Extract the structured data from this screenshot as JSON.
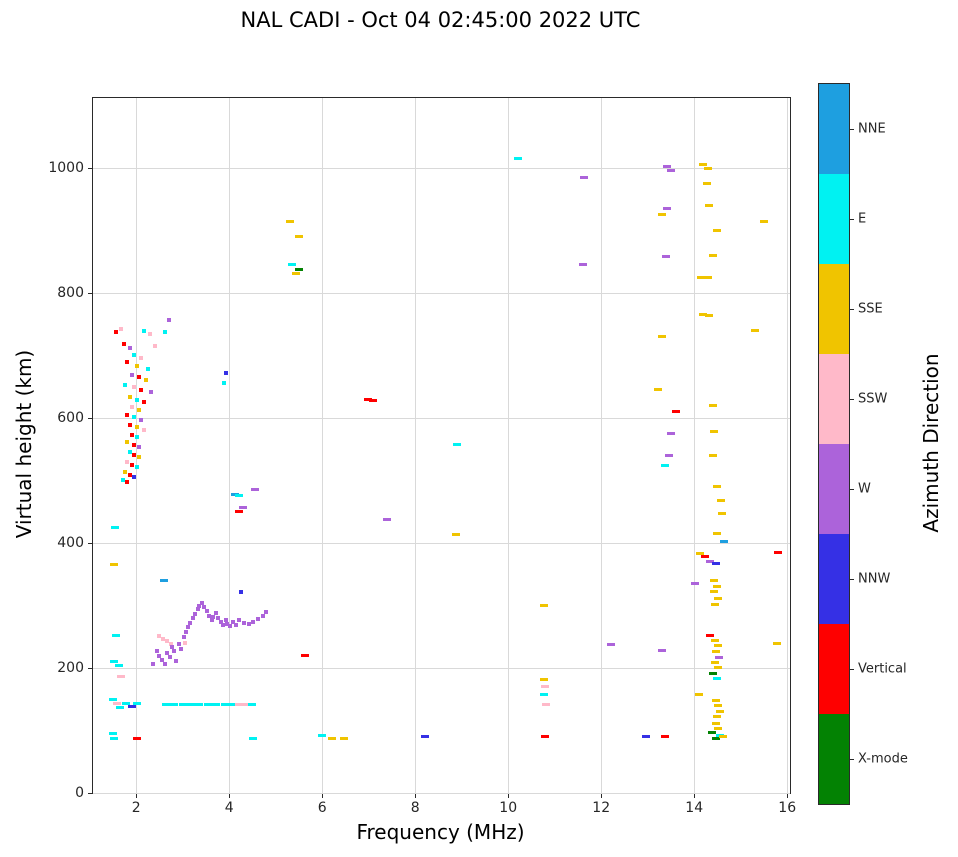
{
  "title": "NAL CADI - Oct 04 02:45:00 2022 UTC",
  "chart_data": {
    "type": "scatter",
    "title": "NAL CADI - Oct 04 02:45:00 2022 UTC",
    "xlabel": "Frequency (MHz)",
    "ylabel": "Virtual height (km)",
    "colorbar_label": "Azimuth Direction",
    "xlim": [
      1.07,
      16.06
    ],
    "ylim": [
      0,
      1112
    ],
    "xticks": [
      2,
      4,
      6,
      8,
      10,
      12,
      14,
      16
    ],
    "yticks": [
      0,
      200,
      400,
      600,
      800,
      1000
    ],
    "grid": true,
    "legend_position": "right-colorbar",
    "categories": [
      {
        "name": "NNE",
        "color": "#1E9FE0"
      },
      {
        "name": "E",
        "color": "#00F2F2"
      },
      {
        "name": "SSE",
        "color": "#F0C400"
      },
      {
        "name": "SSW",
        "color": "#FFB9C9"
      },
      {
        "name": "W",
        "color": "#AC63DA"
      },
      {
        "name": "NNW",
        "color": "#3530E5"
      },
      {
        "name": "Vertical",
        "color": "#FE0000"
      },
      {
        "name": "X-mode",
        "color": "#038203"
      }
    ],
    "points": [
      [
        1.57,
        738,
        "Vertical",
        1
      ],
      [
        1.68,
        743,
        "SSW",
        1
      ],
      [
        2.17,
        740,
        "E",
        1
      ],
      [
        2.3,
        735,
        "SSW",
        1
      ],
      [
        1.73,
        719,
        "Vertical",
        1
      ],
      [
        1.86,
        712,
        "W",
        1
      ],
      [
        2.4,
        716,
        "SSW",
        1
      ],
      [
        1.95,
        701,
        "E",
        1
      ],
      [
        2.1,
        696,
        "SSW",
        1
      ],
      [
        1.8,
        689,
        "Vertical",
        1
      ],
      [
        2.01,
        683,
        "SSE",
        1
      ],
      [
        2.26,
        679,
        "E",
        1
      ],
      [
        1.9,
        669,
        "W",
        1
      ],
      [
        2.06,
        665,
        "Vertical",
        1
      ],
      [
        2.21,
        661,
        "SSE",
        1
      ],
      [
        1.76,
        653,
        "E",
        1
      ],
      [
        1.96,
        649,
        "SSW",
        1
      ],
      [
        2.11,
        645,
        "Vertical",
        1
      ],
      [
        2.31,
        641,
        "W",
        1
      ],
      [
        1.86,
        633,
        "SSE",
        1
      ],
      [
        2.01,
        629,
        "E",
        1
      ],
      [
        2.16,
        625,
        "Vertical",
        1
      ],
      [
        1.91,
        617,
        "SSW",
        1
      ],
      [
        2.06,
        613,
        "SSE",
        1
      ],
      [
        1.81,
        605,
        "Vertical",
        1
      ],
      [
        1.96,
        601,
        "E",
        1
      ],
      [
        2.11,
        597,
        "W",
        1
      ],
      [
        1.86,
        589,
        "Vertical",
        1
      ],
      [
        2.01,
        585,
        "SSE",
        1
      ],
      [
        2.16,
        581,
        "SSW",
        1
      ],
      [
        1.91,
        573,
        "Vertical",
        1
      ],
      [
        2.02,
        569,
        "E",
        1
      ],
      [
        1.81,
        561,
        "SSE",
        1
      ],
      [
        1.96,
        557,
        "Vertical",
        1
      ],
      [
        2.06,
        553,
        "W",
        1
      ],
      [
        1.86,
        545,
        "E",
        1
      ],
      [
        1.96,
        541,
        "Vertical",
        1
      ],
      [
        2.06,
        537,
        "SSE",
        1
      ],
      [
        1.81,
        529,
        "SSW",
        1
      ],
      [
        1.91,
        525,
        "Vertical",
        1
      ],
      [
        2.01,
        521,
        "E",
        1
      ],
      [
        1.76,
        513,
        "SSE",
        1
      ],
      [
        1.86,
        509,
        "Vertical",
        1
      ],
      [
        1.96,
        505,
        "NNW",
        1
      ],
      [
        1.71,
        501,
        "E",
        1
      ],
      [
        1.81,
        497,
        "Vertical",
        1
      ],
      [
        2.7,
        757,
        "W",
        1
      ],
      [
        2.62,
        738,
        "E",
        1
      ],
      [
        3.92,
        672,
        "NNW",
        1
      ],
      [
        3.88,
        656,
        "E",
        1
      ],
      [
        2.6,
        340,
        "NNE"
      ],
      [
        1.55,
        425,
        "E"
      ],
      [
        1.53,
        365,
        "SSE"
      ],
      [
        1.56,
        252,
        "E"
      ],
      [
        1.52,
        210,
        "E"
      ],
      [
        1.62,
        204,
        "E"
      ],
      [
        1.68,
        186,
        "SSW"
      ],
      [
        1.5,
        150,
        "E"
      ],
      [
        1.58,
        143,
        "SSW"
      ],
      [
        1.66,
        137,
        "E"
      ],
      [
        1.77,
        144,
        "E"
      ],
      [
        1.9,
        139,
        "NNW"
      ],
      [
        2.02,
        144,
        "E"
      ],
      [
        2.65,
        142,
        "E"
      ],
      [
        2.82,
        142,
        "E"
      ],
      [
        3.0,
        141,
        "E"
      ],
      [
        3.18,
        142,
        "E"
      ],
      [
        3.36,
        141,
        "E"
      ],
      [
        3.54,
        142,
        "E"
      ],
      [
        3.72,
        141,
        "E"
      ],
      [
        3.9,
        142,
        "E"
      ],
      [
        4.06,
        141,
        "E"
      ],
      [
        4.2,
        142,
        "SSW"
      ],
      [
        4.34,
        141,
        "SSW"
      ],
      [
        4.48,
        142,
        "E"
      ],
      [
        1.5,
        95,
        "E"
      ],
      [
        1.52,
        87,
        "E"
      ],
      [
        2.02,
        88,
        "Vertical"
      ],
      [
        4.52,
        88,
        "E"
      ],
      [
        6.0,
        92,
        "E"
      ],
      [
        6.22,
        88,
        "SSE"
      ],
      [
        6.46,
        88,
        "SSE"
      ],
      [
        8.2,
        90,
        "NNW"
      ],
      [
        10.8,
        90,
        "Vertical"
      ],
      [
        12.97,
        90,
        "NNW"
      ],
      [
        13.37,
        90,
        "Vertical"
      ],
      [
        2.5,
        252,
        "SSW",
        1
      ],
      [
        2.58,
        247,
        "SSW",
        1
      ],
      [
        2.66,
        243,
        "SSW",
        1
      ],
      [
        2.74,
        239,
        "SSW",
        1
      ],
      [
        3.05,
        240,
        "SSW",
        1
      ],
      [
        2.36,
        206,
        "W",
        1
      ],
      [
        2.44,
        228,
        "W",
        1
      ],
      [
        2.5,
        220,
        "W",
        1
      ],
      [
        2.56,
        213,
        "W",
        1
      ],
      [
        2.62,
        207,
        "W",
        1
      ],
      [
        2.66,
        224,
        "W",
        1
      ],
      [
        2.72,
        217,
        "W",
        1
      ],
      [
        2.76,
        234,
        "W",
        1
      ],
      [
        2.82,
        227,
        "W",
        1
      ],
      [
        2.86,
        211,
        "W",
        1
      ],
      [
        2.92,
        239,
        "W",
        1
      ],
      [
        2.96,
        231,
        "W",
        1
      ],
      [
        3.02,
        250,
        "W",
        1
      ],
      [
        3.06,
        257,
        "W",
        1
      ],
      [
        3.12,
        265,
        "W",
        1
      ],
      [
        3.16,
        272,
        "W",
        1
      ],
      [
        3.22,
        280,
        "W",
        1
      ],
      [
        3.26,
        287,
        "W",
        1
      ],
      [
        3.32,
        294,
        "W",
        1
      ],
      [
        3.36,
        300,
        "W",
        1
      ],
      [
        3.42,
        304,
        "W",
        1
      ],
      [
        3.46,
        297,
        "W",
        1
      ],
      [
        3.52,
        291,
        "W",
        1
      ],
      [
        3.56,
        284,
        "W",
        1
      ],
      [
        3.62,
        277,
        "W",
        1
      ],
      [
        3.66,
        282,
        "W",
        1
      ],
      [
        3.72,
        288,
        "W",
        1
      ],
      [
        3.76,
        280,
        "W",
        1
      ],
      [
        3.82,
        274,
        "W",
        1
      ],
      [
        3.86,
        269,
        "W",
        1
      ],
      [
        3.92,
        277,
        "W",
        1
      ],
      [
        3.96,
        271,
        "W",
        1
      ],
      [
        4.02,
        267,
        "W",
        1
      ],
      [
        4.08,
        274,
        "W",
        1
      ],
      [
        4.14,
        269,
        "W",
        1
      ],
      [
        4.22,
        277,
        "W",
        1
      ],
      [
        4.32,
        272,
        "W",
        1
      ],
      [
        4.42,
        270,
        "W",
        1
      ],
      [
        4.52,
        274,
        "W",
        1
      ],
      [
        4.62,
        279,
        "W",
        1
      ],
      [
        4.72,
        284,
        "W",
        1
      ],
      [
        4.78,
        289,
        "W",
        1
      ],
      [
        4.25,
        322,
        "NNW",
        1
      ],
      [
        4.12,
        478,
        "NNE"
      ],
      [
        4.22,
        476,
        "E"
      ],
      [
        4.55,
        485,
        "W"
      ],
      [
        4.2,
        450,
        "Vertical"
      ],
      [
        4.3,
        457,
        "W"
      ],
      [
        5.62,
        220,
        "Vertical"
      ],
      [
        5.3,
        914,
        "SSE"
      ],
      [
        5.5,
        890,
        "SSE"
      ],
      [
        5.36,
        845,
        "E"
      ],
      [
        5.5,
        838,
        "X-mode"
      ],
      [
        5.44,
        832,
        "SSE"
      ],
      [
        6.98,
        630,
        "Vertical"
      ],
      [
        7.1,
        628,
        "Vertical"
      ],
      [
        7.4,
        438,
        "W"
      ],
      [
        8.9,
        558,
        "E"
      ],
      [
        8.88,
        413,
        "SSE"
      ],
      [
        10.2,
        1015,
        "E"
      ],
      [
        11.62,
        985,
        "W"
      ],
      [
        11.6,
        846,
        "W"
      ],
      [
        10.78,
        300,
        "SSE"
      ],
      [
        10.78,
        181,
        "SSE"
      ],
      [
        10.8,
        170,
        "SSW"
      ],
      [
        10.78,
        157,
        "E"
      ],
      [
        10.82,
        142,
        "SSW"
      ],
      [
        12.2,
        238,
        "W"
      ],
      [
        13.3,
        228,
        "W"
      ],
      [
        13.42,
        1003,
        "W"
      ],
      [
        13.5,
        996,
        "W"
      ],
      [
        13.42,
        935,
        "W"
      ],
      [
        13.3,
        925,
        "SSE"
      ],
      [
        13.4,
        858,
        "W"
      ],
      [
        13.3,
        730,
        "SSE"
      ],
      [
        13.22,
        645,
        "SSE"
      ],
      [
        13.6,
        610,
        "Vertical"
      ],
      [
        13.5,
        576,
        "W"
      ],
      [
        13.45,
        540,
        "W"
      ],
      [
        13.38,
        524,
        "E"
      ],
      [
        14.18,
        1005,
        "SSE"
      ],
      [
        14.3,
        1000,
        "SSE"
      ],
      [
        14.28,
        975,
        "SSE"
      ],
      [
        14.32,
        940,
        "SSE"
      ],
      [
        14.48,
        900,
        "SSE"
      ],
      [
        14.4,
        860,
        "SSE"
      ],
      [
        14.15,
        825,
        "SSE"
      ],
      [
        14.3,
        825,
        "SSE"
      ],
      [
        14.18,
        765,
        "SSE"
      ],
      [
        14.32,
        764,
        "SSE"
      ],
      [
        14.4,
        620,
        "SSE"
      ],
      [
        14.42,
        578,
        "SSE"
      ],
      [
        14.4,
        540,
        "SSE"
      ],
      [
        14.5,
        490,
        "SSE"
      ],
      [
        14.58,
        468,
        "SSE"
      ],
      [
        14.6,
        448,
        "SSE"
      ],
      [
        14.5,
        415,
        "SSE"
      ],
      [
        14.65,
        402,
        "NNE"
      ],
      [
        14.12,
        383,
        "SSE"
      ],
      [
        14.24,
        378,
        "Vertical"
      ],
      [
        14.34,
        371,
        "W"
      ],
      [
        14.46,
        367,
        "NNW"
      ],
      [
        14.02,
        336,
        "W"
      ],
      [
        14.42,
        340,
        "SSE"
      ],
      [
        14.5,
        331,
        "SSE"
      ],
      [
        14.42,
        322,
        "SSE"
      ],
      [
        14.52,
        312,
        "SSE"
      ],
      [
        14.44,
        301,
        "SSE"
      ],
      [
        14.34,
        252,
        "Vertical"
      ],
      [
        14.44,
        244,
        "SSE"
      ],
      [
        14.52,
        236,
        "SSE"
      ],
      [
        14.46,
        226,
        "SSE"
      ],
      [
        14.54,
        217,
        "W"
      ],
      [
        14.44,
        209,
        "SSE"
      ],
      [
        14.52,
        201,
        "SSE"
      ],
      [
        14.4,
        192,
        "X-mode"
      ],
      [
        14.5,
        184,
        "E"
      ],
      [
        14.1,
        157,
        "SSE"
      ],
      [
        14.46,
        148,
        "SSE"
      ],
      [
        14.52,
        140,
        "SSE"
      ],
      [
        14.56,
        131,
        "SSE"
      ],
      [
        14.5,
        122,
        "SSE"
      ],
      [
        14.46,
        112,
        "SSE"
      ],
      [
        14.52,
        104,
        "SSE"
      ],
      [
        14.38,
        97,
        "X-mode"
      ],
      [
        14.55,
        92,
        "E"
      ],
      [
        14.46,
        88,
        "X-mode"
      ],
      [
        14.62,
        90,
        "SSE"
      ],
      [
        15.5,
        914,
        "SSE"
      ],
      [
        15.3,
        740,
        "SSE"
      ],
      [
        15.8,
        385,
        "Vertical"
      ],
      [
        15.78,
        240,
        "SSE"
      ]
    ]
  }
}
